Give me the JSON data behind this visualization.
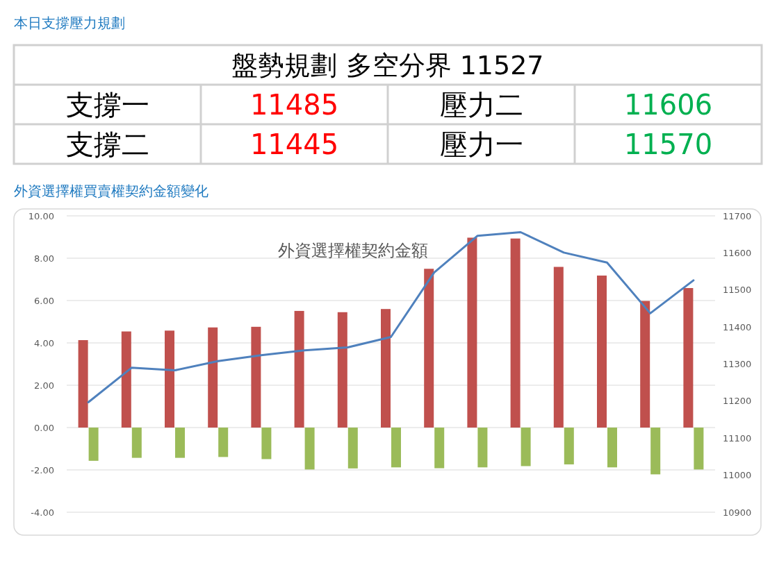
{
  "chart_data": [
    {
      "type": "other",
      "title": "本日支撐壓力規劃",
      "annotations": [
        "盤勢規劃 多空分界 11527",
        "支撐一",
        "11485",
        "壓力二",
        "11606",
        "支撐二",
        "11445",
        "壓力一",
        "11570"
      ]
    },
    {
      "type": "bar",
      "title": "外資選擇權買賣權契約金額變化",
      "subtitle": "外資選擇權契約金額",
      "categories": [
        null,
        null,
        null,
        null,
        null,
        null,
        null,
        null,
        null,
        null,
        null,
        null,
        null,
        null,
        null
      ],
      "series": [
        {
          "color": "#c0504d",
          "values": [
            4.13,
            4.54,
            4.58,
            4.73,
            4.76,
            5.51,
            5.45,
            5.6,
            7.5,
            8.97,
            8.93,
            7.59,
            7.18,
            5.98,
            6.59
          ]
        },
        {
          "color": "#9bbb59",
          "values": [
            -1.57,
            -1.43,
            -1.43,
            -1.39,
            -1.49,
            -1.98,
            -1.93,
            -1.88,
            -1.92,
            -1.88,
            -1.82,
            -1.74,
            -1.88,
            -2.21,
            -1.98
          ]
        },
        {
          "type": "line",
          "axis": "y2",
          "color": "#4f81bd",
          "values": [
            11197,
            11290,
            11283,
            11308,
            11324,
            11337,
            11345,
            11373,
            11547,
            11646,
            11656,
            11601,
            11574,
            11437,
            11526
          ]
        }
      ],
      "ylim": [
        -4,
        10
      ],
      "yticks": [
        {
          "value": -4,
          "label": "-4.00"
        },
        {
          "value": -2,
          "label": "-2.00"
        },
        {
          "value": 0,
          "label": "0.00"
        },
        {
          "value": 2,
          "label": "2.00"
        },
        {
          "value": 4,
          "label": "4.00"
        },
        {
          "value": 6,
          "label": "6.00"
        },
        {
          "value": 8,
          "label": "8.00"
        },
        {
          "value": 10,
          "label": "10.00"
        }
      ],
      "y2lim": [
        10900,
        11700
      ],
      "y2ticks": [
        10900,
        11000,
        11100,
        11200,
        11300,
        11400,
        11500,
        11600,
        11700
      ],
      "grid": "y"
    }
  ]
}
